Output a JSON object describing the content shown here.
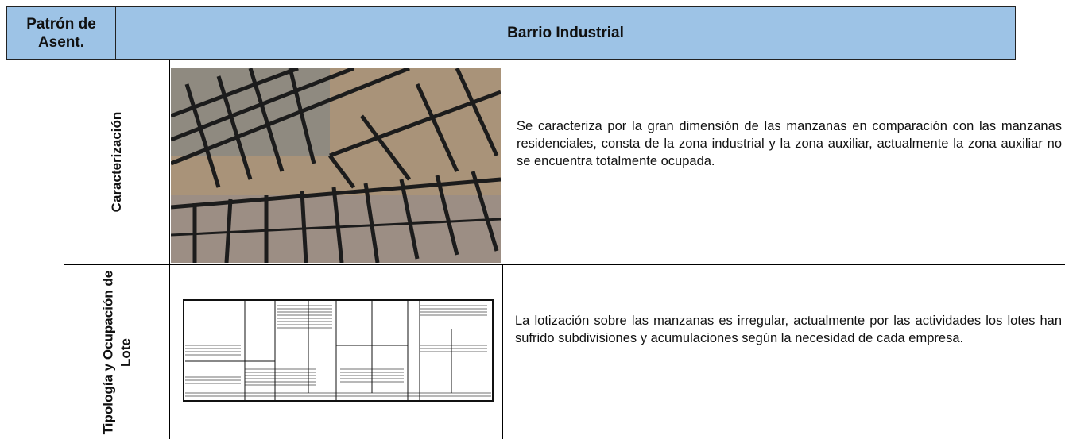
{
  "header": {
    "settlement_pattern": "Patrón de Asent.",
    "title": "Barrio Industrial"
  },
  "rows": [
    {
      "label": "Caracterización",
      "description": "Se caracteriza por la gran dimensión de las manzanas en comparación con las manzanas residenciales, consta de la zona industrial y la zona auxiliar, actualmente la zona auxiliar no se  encuentra totalmente ocupada."
    },
    {
      "label": "Tipología y Ocupación de Lote",
      "description": "La lotización sobre las manzanas es  irregular, actualmente por las actividades los lotes han sufrido subdivisiones y acumulaciones según la necesidad de  cada empresa."
    }
  ]
}
